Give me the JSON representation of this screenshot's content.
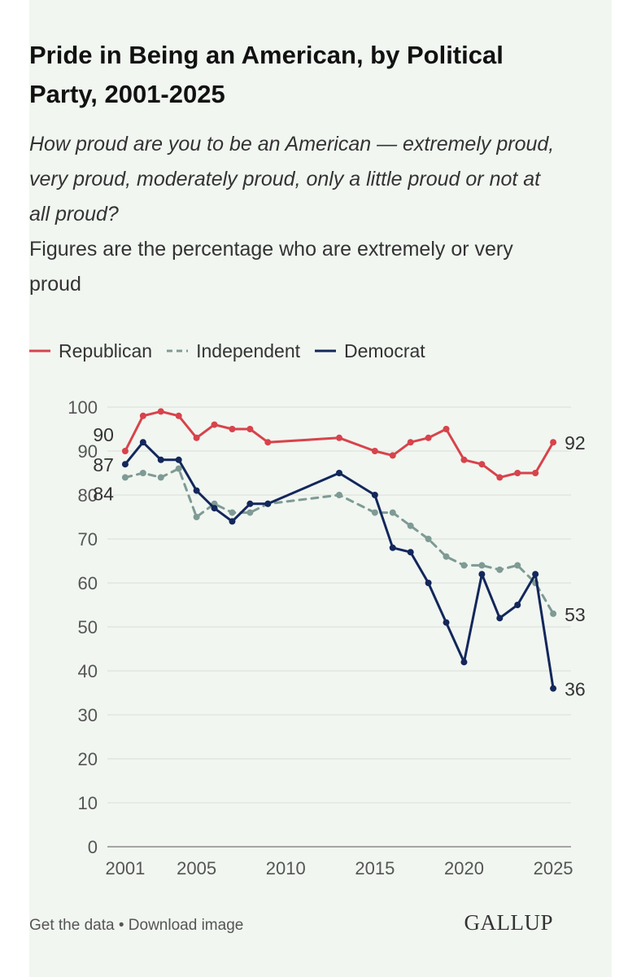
{
  "header": {
    "title": "Pride in Being an American, by Political Party, 2001-2025",
    "question": "How proud are you to be an American — extremely proud, very proud, moderately proud, only a little proud or not at all proud?",
    "note": "Figures are the percentage who are extremely or very proud"
  },
  "footer": {
    "get_data": "Get the data",
    "separator": "•",
    "download": "Download image",
    "logo": "GALLUP"
  },
  "chart_data": {
    "type": "line",
    "x": [
      2001,
      2002,
      2003,
      2004,
      2005,
      2006,
      2007,
      2008,
      2009,
      2013,
      2015,
      2016,
      2017,
      2018,
      2019,
      2020,
      2021,
      2022,
      2023,
      2024,
      2025
    ],
    "xlim": [
      2000,
      2026
    ],
    "ylim": [
      0,
      100
    ],
    "xticks": [
      2001,
      2005,
      2010,
      2015,
      2020,
      2025
    ],
    "yticks": [
      0,
      10,
      20,
      30,
      40,
      50,
      60,
      70,
      80,
      90,
      100
    ],
    "grid": true,
    "legend_position": "top-left",
    "series": [
      {
        "name": "Republican",
        "color": "#d8434b",
        "style": "solid",
        "values": [
          90,
          98,
          99,
          98,
          93,
          96,
          95,
          95,
          92,
          93,
          90,
          89,
          92,
          93,
          95,
          88,
          87,
          84,
          85,
          85,
          92
        ]
      },
      {
        "name": "Independent",
        "color": "#7f9a94",
        "style": "dashed",
        "values": [
          84,
          85,
          84,
          86,
          75,
          78,
          76,
          76,
          78,
          80,
          76,
          76,
          73,
          70,
          66,
          64,
          64,
          63,
          64,
          60,
          53
        ]
      },
      {
        "name": "Democrat",
        "color": "#13275b",
        "style": "solid",
        "values": [
          87,
          92,
          88,
          88,
          81,
          77,
          74,
          78,
          78,
          85,
          80,
          68,
          67,
          60,
          51,
          42,
          62,
          52,
          55,
          62,
          36
        ]
      }
    ],
    "annotations": [
      {
        "series": "Republican",
        "x": 2001,
        "label": "90",
        "side": "left"
      },
      {
        "series": "Democrat",
        "x": 2001,
        "label": "87",
        "side": "left"
      },
      {
        "series": "Independent",
        "x": 2001,
        "label": "84",
        "side": "left"
      },
      {
        "series": "Republican",
        "x": 2025,
        "label": "92",
        "side": "right"
      },
      {
        "series": "Independent",
        "x": 2025,
        "label": "53",
        "side": "right"
      },
      {
        "series": "Democrat",
        "x": 2025,
        "label": "36",
        "side": "right"
      }
    ]
  }
}
